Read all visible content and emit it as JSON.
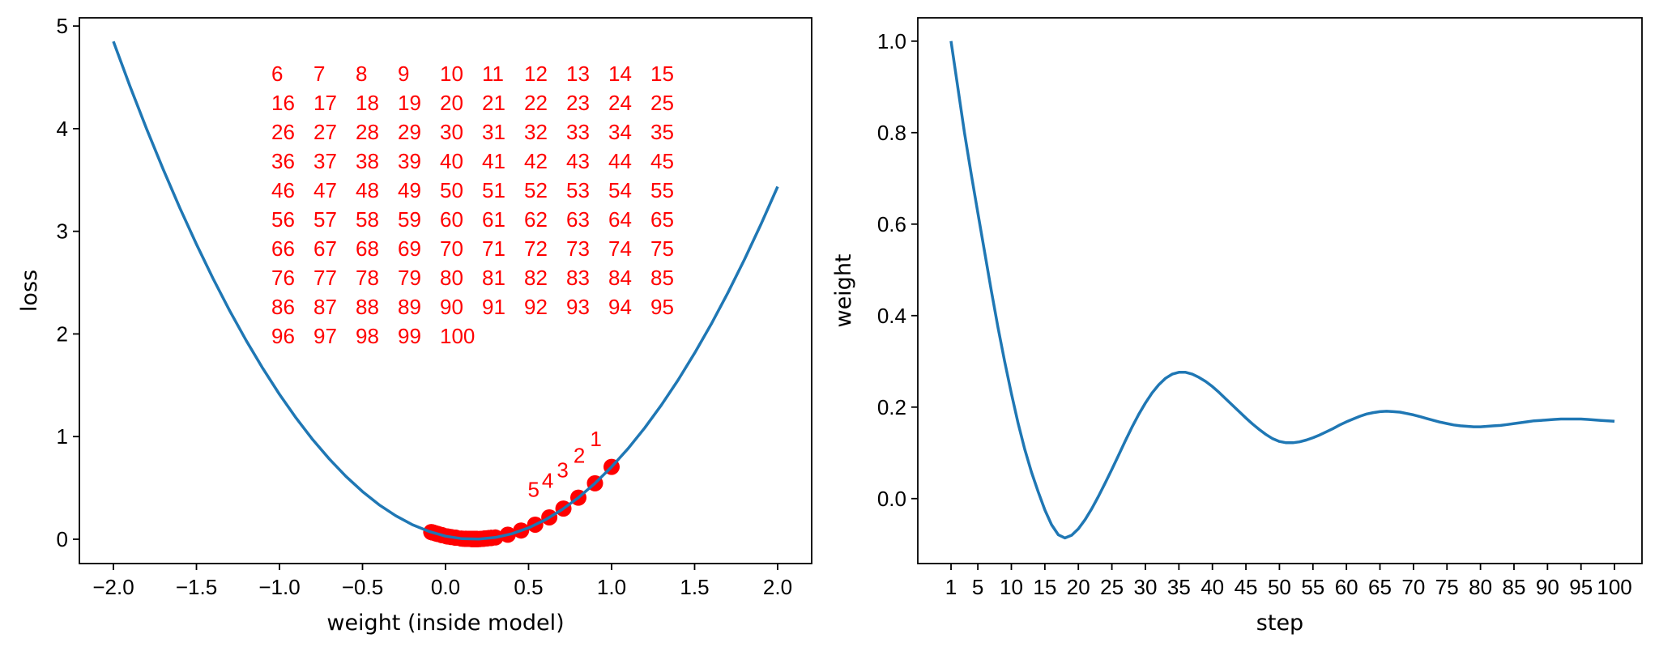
{
  "colors": {
    "line": "#1f77b4",
    "points": "#ff0000",
    "annotations": "#ff0000",
    "axes": "#000000"
  },
  "chart_data": [
    {
      "type": "line+scatter",
      "xlabel": "weight (inside model)",
      "ylabel": "loss",
      "xlim": [
        -2.205,
        2.205
      ],
      "ylim": [
        -0.237,
        5.08
      ],
      "grid": false,
      "xticks": [
        -2.0,
        -1.5,
        -1.0,
        -0.5,
        0.0,
        0.5,
        1.0,
        1.5,
        2.0
      ],
      "xtick_labels": [
        "−2.0",
        "−1.5",
        "−1.0",
        "−0.5",
        "0.0",
        "0.5",
        "1.0",
        "1.5",
        "2.0"
      ],
      "yticks": [
        0,
        1,
        2,
        3,
        4,
        5
      ],
      "ytick_labels": [
        "0",
        "1",
        "2",
        "3",
        "4",
        "5"
      ],
      "curve": {
        "x": [
          -2.0,
          -1.9,
          -1.8,
          -1.7,
          -1.6,
          -1.5,
          -1.4,
          -1.3,
          -1.2,
          -1.1,
          -1.0,
          -0.9,
          -0.8,
          -0.7,
          -0.6,
          -0.5,
          -0.4,
          -0.3,
          -0.2,
          -0.1,
          0.0,
          0.1,
          0.2,
          0.3,
          0.4,
          0.5,
          0.6,
          0.7,
          0.8,
          0.9,
          1.0,
          1.1,
          1.2,
          1.3,
          1.4,
          1.5,
          1.6,
          1.7,
          1.8,
          1.9,
          2.0
        ],
        "y": [
          4.85,
          4.413,
          3.998,
          3.603,
          3.228,
          2.874,
          2.54,
          2.227,
          1.935,
          1.663,
          1.412,
          1.181,
          0.971,
          0.782,
          0.613,
          0.464,
          0.336,
          0.229,
          0.142,
          0.076,
          0.03,
          0.005,
          0.001,
          0.017,
          0.053,
          0.111,
          0.188,
          0.287,
          0.405,
          0.545,
          0.705,
          0.885,
          1.086,
          1.308,
          1.55,
          1.813,
          2.096,
          2.4,
          2.725,
          3.07,
          3.435
        ]
      },
      "scatter_note_labels": "each point is annotated with its step number"
    },
    {
      "type": "line",
      "xlabel": "step",
      "ylabel": "weight",
      "xlim": [
        -3.96,
        104.1
      ],
      "ylim": [
        -0.142,
        1.051
      ],
      "grid": false,
      "xticks": [
        1,
        5,
        10,
        15,
        20,
        25,
        30,
        35,
        40,
        45,
        50,
        55,
        60,
        65,
        70,
        75,
        80,
        85,
        90,
        95,
        100
      ],
      "xtick_labels": [
        "1",
        "5",
        "10",
        "15",
        "20",
        "25",
        "30",
        "35",
        "40",
        "45",
        "50",
        "55",
        "60",
        "65",
        "70",
        "75",
        "80",
        "85",
        "90",
        "95",
        "100"
      ],
      "yticks": [
        0.0,
        0.2,
        0.4,
        0.6,
        0.8,
        1.0
      ],
      "ytick_labels": [
        "0.0",
        "0.2",
        "0.4",
        "0.6",
        "0.8",
        "1.0"
      ],
      "steps": [
        1,
        2,
        3,
        4,
        5,
        6,
        7,
        8,
        9,
        10,
        11,
        12,
        13,
        14,
        15,
        16,
        17,
        18,
        19,
        20,
        21,
        22,
        23,
        24,
        25,
        26,
        27,
        28,
        29,
        30,
        31,
        32,
        33,
        34,
        35,
        36,
        37,
        38,
        39,
        40,
        41,
        42,
        43,
        44,
        45,
        46,
        47,
        48,
        49,
        50,
        51,
        52,
        53,
        54,
        55,
        56,
        57,
        58,
        59,
        60,
        61,
        62,
        63,
        64,
        65,
        66,
        67,
        68,
        69,
        70,
        71,
        72,
        73,
        74,
        75,
        76,
        77,
        78,
        79,
        80,
        81,
        82,
        83,
        84,
        85,
        86,
        87,
        88,
        89,
        90,
        91,
        92,
        93,
        94,
        95,
        96,
        97,
        98,
        99,
        100
      ],
      "weights": [
        1.0,
        0.9,
        0.8,
        0.71,
        0.625,
        0.54,
        0.455,
        0.375,
        0.3,
        0.23,
        0.165,
        0.108,
        0.058,
        0.015,
        -0.025,
        -0.057,
        -0.079,
        -0.086,
        -0.08,
        -0.066,
        -0.046,
        -0.022,
        0.005,
        0.034,
        0.064,
        0.095,
        0.126,
        0.156,
        0.184,
        0.209,
        0.231,
        0.249,
        0.263,
        0.272,
        0.276,
        0.276,
        0.272,
        0.265,
        0.256,
        0.245,
        0.232,
        0.218,
        0.204,
        0.19,
        0.176,
        0.163,
        0.151,
        0.14,
        0.131,
        0.125,
        0.122,
        0.122,
        0.124,
        0.128,
        0.133,
        0.139,
        0.146,
        0.153,
        0.161,
        0.168,
        0.174,
        0.18,
        0.185,
        0.188,
        0.19,
        0.191,
        0.19,
        0.189,
        0.186,
        0.183,
        0.179,
        0.175,
        0.171,
        0.167,
        0.164,
        0.161,
        0.159,
        0.158,
        0.157,
        0.157,
        0.158,
        0.159,
        0.16,
        0.162,
        0.164,
        0.166,
        0.168,
        0.17,
        0.171,
        0.172,
        0.173,
        0.174,
        0.174,
        0.174,
        0.174,
        0.173,
        0.172,
        0.171,
        0.17,
        0.169
      ]
    }
  ]
}
